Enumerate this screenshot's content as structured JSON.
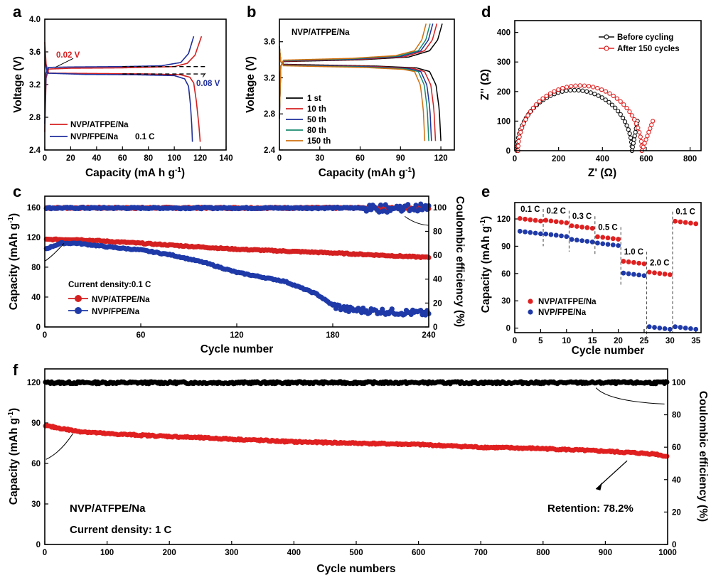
{
  "chart_data": [
    {
      "id": "a",
      "type": "line",
      "panel_label": "a",
      "xlabel": "Capacity (mA h g-1)",
      "ylabel": "Voltage (V)",
      "xlim": [
        0,
        140
      ],
      "ylim": [
        2.4,
        4.0
      ],
      "xticks": [
        "0",
        "20",
        "40",
        "60",
        "80",
        "100",
        "120",
        "140"
      ],
      "yticks": [
        "2.4",
        "2.8",
        "3.2",
        "3.6",
        "4.0"
      ],
      "legend_position": "bottom-left",
      "legend_note": "0.1 C",
      "series": [
        {
          "name": "NVP/ATFPE/Na",
          "color": "#d42020",
          "charge": [
            [
              0,
              2.62
            ],
            [
              1,
              3.28
            ],
            [
              3,
              3.39
            ],
            [
              20,
              3.4
            ],
            [
              60,
              3.405
            ],
            [
              100,
              3.42
            ],
            [
              110,
              3.46
            ],
            [
              116,
              3.56
            ],
            [
              121,
              3.79
            ]
          ],
          "discharge": [
            [
              0,
              3.72
            ],
            [
              1,
              3.45
            ],
            [
              3,
              3.34
            ],
            [
              40,
              3.335
            ],
            [
              80,
              3.33
            ],
            [
              105,
              3.32
            ],
            [
              112,
              3.29
            ],
            [
              115,
              3.22
            ],
            [
              117,
              3.0
            ],
            [
              119,
              2.7
            ],
            [
              120,
              2.5
            ]
          ]
        },
        {
          "name": "NVP/FPE/Na",
          "color": "#1f2f9b",
          "charge": [
            [
              0,
              2.72
            ],
            [
              1,
              3.34
            ],
            [
              3,
              3.41
            ],
            [
              20,
              3.415
            ],
            [
              60,
              3.42
            ],
            [
              90,
              3.43
            ],
            [
              105,
              3.47
            ],
            [
              111,
              3.58
            ],
            [
              115,
              3.79
            ]
          ],
          "discharge": [
            [
              0,
              3.5
            ],
            [
              2,
              3.34
            ],
            [
              30,
              3.325
            ],
            [
              70,
              3.32
            ],
            [
              100,
              3.31
            ],
            [
              108,
              3.27
            ],
            [
              111,
              3.18
            ],
            [
              112.5,
              2.95
            ],
            [
              113.5,
              2.7
            ],
            [
              114,
              2.5
            ]
          ]
        }
      ],
      "annotations": [
        {
          "text": "0.02 V",
          "color": "#d42020"
        },
        {
          "text": "0.08 V",
          "color": "#1f2f9b"
        }
      ]
    },
    {
      "id": "b",
      "type": "line",
      "panel_label": "b",
      "title": "NVP/ATFPE/Na",
      "xlabel": "Capacity (mAh g-1)",
      "ylabel": "Voltage (V)",
      "xlim": [
        0,
        130
      ],
      "ylim": [
        2.4,
        3.85
      ],
      "xticks": [
        "0",
        "30",
        "60",
        "90",
        "120"
      ],
      "yticks": [
        "2.4",
        "2.8",
        "3.2",
        "3.6"
      ],
      "legend_position": "bottom-left",
      "series": [
        {
          "name": "1 st",
          "color": "#000000",
          "cap": 120
        },
        {
          "name": "10 th",
          "color": "#d42020",
          "cap": 116
        },
        {
          "name": "50 th",
          "color": "#1f2f9b",
          "cap": 113
        },
        {
          "name": "80 th",
          "color": "#1a8a6e",
          "cap": 111
        },
        {
          "name": "150 th",
          "color": "#d07010",
          "cap": 108
        }
      ]
    },
    {
      "id": "c",
      "type": "scatter",
      "panel_label": "c",
      "xlabel": "Cycle number",
      "ylabel": "Capacity (mAh g-1)",
      "y2label": "Coulombic efficiency (%)",
      "xlim": [
        0,
        240
      ],
      "ylim": [
        0,
        175
      ],
      "y2lim": [
        0,
        109.4
      ],
      "xticks": [
        "0",
        "60",
        "120",
        "180",
        "240"
      ],
      "yticks": [
        "0",
        "40",
        "80",
        "120",
        "160"
      ],
      "y2ticks": [
        "0",
        "20",
        "40",
        "60",
        "80",
        "100"
      ],
      "legend_title": "Current density:0.1 C",
      "legend_position": "bottom-left",
      "series": [
        {
          "name": "NVP/ATFPE/Na",
          "color": "#d42020",
          "capacity": [
            [
              0,
              117
            ],
            [
              20,
              117
            ],
            [
              60,
              112
            ],
            [
              120,
              104
            ],
            [
              180,
              99
            ],
            [
              240,
              93
            ]
          ],
          "efficiency": 99.6
        },
        {
          "name": "NVP/FPE/Na",
          "color": "#1f3aa8",
          "capacity": [
            [
              0,
              104
            ],
            [
              10,
              112
            ],
            [
              20,
              112
            ],
            [
              40,
              107
            ],
            [
              60,
              103
            ],
            [
              80,
              96
            ],
            [
              100,
              86
            ],
            [
              120,
              73
            ],
            [
              150,
              61
            ],
            [
              170,
              44
            ],
            [
              180,
              29
            ],
            [
              190,
              23
            ],
            [
              240,
              18
            ]
          ],
          "efficiency": 99.5
        }
      ]
    },
    {
      "id": "d",
      "type": "scatter",
      "panel_label": "d",
      "xlabel": "Z' (Ω)",
      "ylabel": "Z'' (Ω)",
      "xlim": [
        0,
        850
      ],
      "ylim": [
        0,
        440
      ],
      "xticks": [
        "0",
        "200",
        "400",
        "600",
        "800"
      ],
      "yticks": [
        "0",
        "100",
        "200",
        "300",
        "400"
      ],
      "legend_position": "top-right",
      "series": [
        {
          "name": "Before cycling",
          "color": "#111111",
          "rs": 10,
          "rct": 525,
          "tail": [
            [
              560,
              100
            ]
          ]
        },
        {
          "name": "After 150 cycles",
          "color": "#e02020",
          "rs": 15,
          "rct": 565,
          "tail": [
            [
              630,
              100
            ]
          ]
        }
      ]
    },
    {
      "id": "e",
      "type": "scatter",
      "panel_label": "e",
      "xlabel": "Cycle number",
      "ylabel": "Capacity (mAh g-1)",
      "xlim": [
        0,
        36
      ],
      "ylim": [
        -5,
        138
      ],
      "xticks": [
        "0",
        "5",
        "10",
        "15",
        "20",
        "25",
        "30",
        "35"
      ],
      "yticks": [
        "0",
        "30",
        "60",
        "90",
        "120"
      ],
      "legend_position": "bottom-left",
      "rates": [
        "0.1 C",
        "0.2 C",
        "0.3 C",
        "0.5 C",
        "1.0 C",
        "2.0 C",
        "0.1 C"
      ],
      "series": [
        {
          "name": "NVP/ATFPE/Na",
          "color": "#e02020",
          "values": [
            119,
            117,
            111,
            99,
            72,
            60,
            116
          ]
        },
        {
          "name": "NVP/FPE/Na",
          "color": "#1f3aa8",
          "values": [
            105,
            102,
            96,
            92,
            59,
            0,
            0
          ]
        }
      ]
    },
    {
      "id": "f",
      "type": "scatter",
      "panel_label": "f",
      "xlabel": "Cycle numbers",
      "ylabel": "Capacity (mAh g-1)",
      "y2label": "Coulombic efficiency (%)",
      "xlim": [
        0,
        1000
      ],
      "ylim": [
        0,
        130
      ],
      "y2lim": [
        0,
        108.3
      ],
      "xticks": [
        "0",
        "100",
        "200",
        "300",
        "400",
        "500",
        "600",
        "700",
        "800",
        "900",
        "1000"
      ],
      "yticks": [
        "0",
        "30",
        "60",
        "90",
        "120"
      ],
      "y2ticks": [
        "0",
        "20",
        "40",
        "60",
        "80",
        "100"
      ],
      "series": [
        {
          "name": "capacity",
          "color": "#e02020",
          "capacity": [
            [
              0,
              88
            ],
            [
              50,
              84
            ],
            [
              100,
              82
            ],
            [
              200,
              80
            ],
            [
              300,
              78
            ],
            [
              400,
              76
            ],
            [
              500,
              75
            ],
            [
              600,
              74
            ],
            [
              700,
              72
            ],
            [
              800,
              71
            ],
            [
              900,
              69
            ],
            [
              980,
              67
            ],
            [
              1000,
              65
            ]
          ]
        },
        {
          "name": "efficiency",
          "color": "#000000",
          "efficiency": 99.8
        }
      ],
      "annotations": [
        {
          "text": "NVP/ATFPE/Na"
        },
        {
          "text": "Current density: 1 C"
        },
        {
          "text": "Retention: 78.2%"
        }
      ]
    }
  ]
}
